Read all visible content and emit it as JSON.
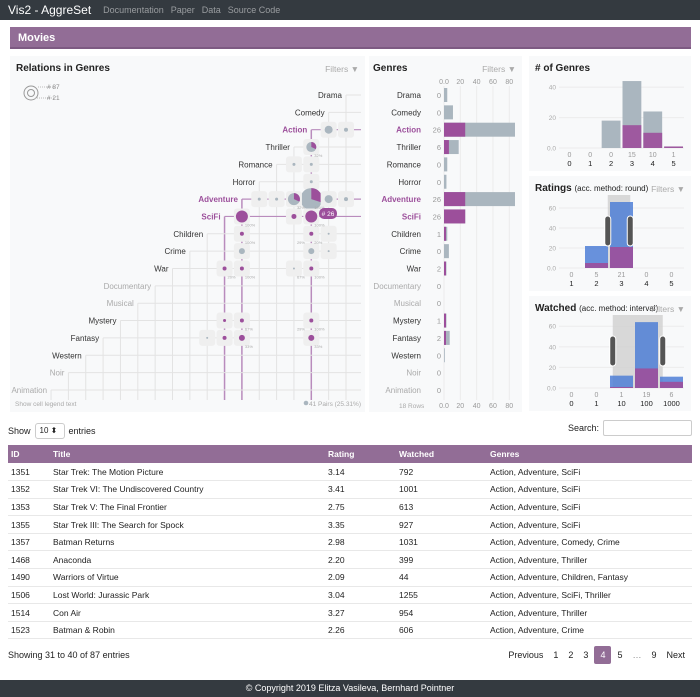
{
  "navbar": {
    "brand": "Vis2 - AggreSet",
    "links": [
      "Documentation",
      "Paper",
      "Data",
      "Source Code"
    ]
  },
  "page_title": "Movies",
  "relations_panel": {
    "title": "Relations in Genres",
    "filters_label": "Filters",
    "legend_large": "# 87",
    "legend_small": "# 21",
    "badge": "# 26",
    "show_legend_text": "Show cell legend text",
    "pairs_text": "41 Pairs (25.31%)",
    "genres": [
      {
        "name": "Drama",
        "state": "normal"
      },
      {
        "name": "Comedy",
        "state": "normal"
      },
      {
        "name": "Action",
        "state": "selected"
      },
      {
        "name": "Thriller",
        "state": "normal"
      },
      {
        "name": "Romance",
        "state": "normal"
      },
      {
        "name": "Horror",
        "state": "normal"
      },
      {
        "name": "Adventure",
        "state": "selected"
      },
      {
        "name": "SciFi",
        "state": "selected"
      },
      {
        "name": "Children",
        "state": "normal"
      },
      {
        "name": "Crime",
        "state": "normal"
      },
      {
        "name": "War",
        "state": "normal"
      },
      {
        "name": "Documentary",
        "state": "muted"
      },
      {
        "name": "Musical",
        "state": "muted"
      },
      {
        "name": "Mystery",
        "state": "normal"
      },
      {
        "name": "Fantasy",
        "state": "normal"
      },
      {
        "name": "Western",
        "state": "normal"
      },
      {
        "name": "Noir",
        "state": "muted"
      },
      {
        "name": "Animation",
        "state": "muted"
      }
    ],
    "cell_labels": [
      "32%",
      "32%",
      "100%",
      "100%",
      "100%",
      "20%",
      "20%",
      "100%",
      "67%",
      "100%",
      "67%",
      "100%",
      "33%",
      "33%",
      "100%",
      "29%",
      "29%"
    ]
  },
  "genres_panel": {
    "title": "Genres",
    "filters_label": "Filters",
    "rows_text": "18 Rows",
    "axis_ticks": [
      "0.0",
      "20",
      "40",
      "60",
      "80"
    ]
  },
  "num_genres_panel": {
    "title": "# of Genres"
  },
  "ratings_panel": {
    "title": "Ratings",
    "subtitle": "(acc. method: round)",
    "filters_label": "Filters"
  },
  "watched_panel": {
    "title": "Watched",
    "subtitle": "(acc. method: interval)",
    "filters_label": "Filters"
  },
  "chart_data": [
    {
      "type": "bar",
      "title": "Genres",
      "orientation": "horizontal",
      "categories": [
        "Drama",
        "Comedy",
        "Action",
        "Thriller",
        "Romance",
        "Horror",
        "Adventure",
        "SciFi",
        "Children",
        "Crime",
        "War",
        "Documentary",
        "Musical",
        "Mystery",
        "Fantasy",
        "Western",
        "Noir",
        "Animation"
      ],
      "series": [
        {
          "name": "total",
          "color": "#aab6bf",
          "values": [
            4,
            11,
            87,
            18,
            4,
            3,
            87,
            26,
            4,
            6,
            3,
            0,
            0,
            3,
            7,
            1,
            0,
            0
          ]
        },
        {
          "name": "selected",
          "color": "#9c4f9b",
          "values": [
            0,
            0,
            26,
            6,
            0,
            0,
            26,
            26,
            1,
            0,
            2,
            0,
            0,
            1,
            2,
            0,
            0,
            0
          ]
        }
      ],
      "xlim": [
        0,
        90
      ]
    },
    {
      "type": "bar",
      "title": "# of Genres",
      "categories": [
        "0",
        "1",
        "2",
        "3",
        "4",
        "5"
      ],
      "series": [
        {
          "name": "total",
          "color": "#aab6bf",
          "values": [
            0,
            0,
            18,
            44,
            24,
            1
          ]
        },
        {
          "name": "selected",
          "color": "#9c4f9b",
          "values": [
            0,
            0,
            0,
            15,
            10,
            1
          ]
        }
      ],
      "selected_labels": [
        "0",
        "0",
        "0",
        "15",
        "10",
        "1"
      ],
      "yticks": [
        "0.0",
        "20",
        "40"
      ],
      "ylim": [
        0,
        46
      ]
    },
    {
      "type": "bar",
      "title": "Ratings",
      "categories": [
        "1",
        "2",
        "3",
        "4",
        "5"
      ],
      "series": [
        {
          "name": "total",
          "color": "#4f7fd6",
          "values": [
            0,
            22,
            66,
            0,
            0
          ]
        },
        {
          "name": "selected",
          "color": "#9c4f9b",
          "values": [
            0,
            5,
            21,
            0,
            0
          ]
        }
      ],
      "selected_labels": [
        "0",
        "5",
        "21",
        "0",
        "0"
      ],
      "yticks": [
        "0.0",
        "20",
        "40",
        "60"
      ],
      "ylim": [
        0,
        70
      ]
    },
    {
      "type": "bar",
      "title": "Watched",
      "categories": [
        "0",
        "1",
        "10",
        "100",
        "1000"
      ],
      "series": [
        {
          "name": "total",
          "color": "#4f7fd6",
          "values": [
            0,
            0,
            12,
            64,
            11
          ]
        },
        {
          "name": "selected",
          "color": "#9c4f9b",
          "values": [
            0,
            0,
            1,
            19,
            6
          ]
        }
      ],
      "selected_labels": [
        "0",
        "0",
        "1",
        "19",
        "6"
      ],
      "yticks": [
        "0.0",
        "20",
        "40",
        "60"
      ],
      "ylim": [
        0,
        68
      ]
    }
  ],
  "table_controls": {
    "show_label": "Show",
    "entries_value": "10",
    "entries_label": "entries",
    "search_label": "Search:",
    "search_value": ""
  },
  "table": {
    "columns": [
      "ID",
      "Title",
      "Rating",
      "Watched",
      "Genres"
    ],
    "rows": [
      [
        "1351",
        "Star Trek: The Motion Picture",
        "3.14",
        "792",
        "Action, Adventure, SciFi"
      ],
      [
        "1352",
        "Star Trek VI: The Undiscovered Country",
        "3.41",
        "1001",
        "Action, Adventure, SciFi"
      ],
      [
        "1353",
        "Star Trek V: The Final Frontier",
        "2.75",
        "613",
        "Action, Adventure, SciFi"
      ],
      [
        "1355",
        "Star Trek III: The Search for Spock",
        "3.35",
        "927",
        "Action, Adventure, SciFi"
      ],
      [
        "1357",
        "Batman Returns",
        "2.98",
        "1031",
        "Action, Adventure, Comedy, Crime"
      ],
      [
        "1468",
        "Anaconda",
        "2.20",
        "399",
        "Action, Adventure, Thriller"
      ],
      [
        "1490",
        "Warriors of Virtue",
        "2.09",
        "44",
        "Action, Adventure, Children, Fantasy"
      ],
      [
        "1506",
        "Lost World: Jurassic Park",
        "3.04",
        "1255",
        "Action, Adventure, SciFi, Thriller"
      ],
      [
        "1514",
        "Con Air",
        "3.27",
        "954",
        "Action, Adventure, Thriller"
      ],
      [
        "1523",
        "Batman & Robin",
        "2.26",
        "606",
        "Action, Adventure, Crime"
      ]
    ]
  },
  "pagination": {
    "info": "Showing 31 to 40 of 87 entries",
    "previous": "Previous",
    "pages": [
      "1",
      "2",
      "3",
      "4",
      "5",
      "…",
      "9"
    ],
    "active": "4",
    "next": "Next"
  },
  "footer": "© Copyright 2019 Elitza Vasileva, Bernhard Pointner",
  "colors": {
    "accent": "#926d96",
    "selected": "#9c4f9b",
    "total_gray": "#aab6bf",
    "total_blue": "#4f7fd6",
    "nav_bg": "#343a40"
  }
}
